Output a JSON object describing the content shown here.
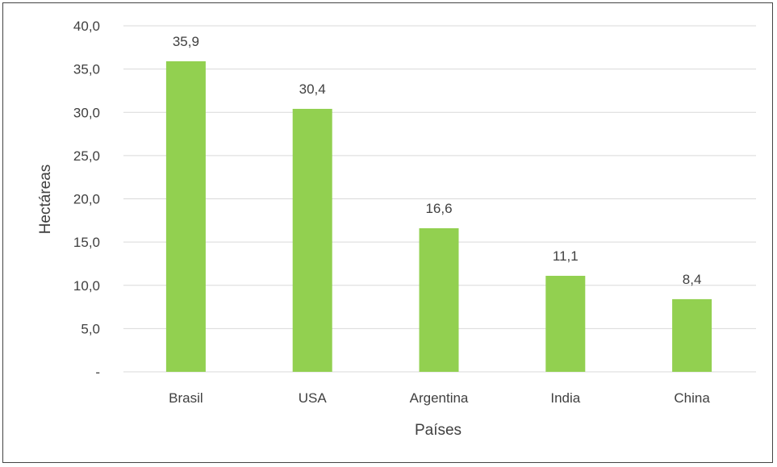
{
  "chart_data": {
    "type": "bar",
    "title": "",
    "xlabel": "Países",
    "ylabel": "Hectáreas",
    "categories": [
      "Brasil",
      "USA",
      "Argentina",
      "India",
      "China"
    ],
    "values": [
      35.9,
      30.4,
      16.6,
      11.1,
      8.4
    ],
    "data_labels": [
      "35,9",
      "30,4",
      "16,6",
      "11,1",
      "8,4"
    ],
    "ylim": [
      0,
      40
    ],
    "y_ticks": [
      0,
      5,
      10,
      15,
      20,
      25,
      30,
      35,
      40
    ],
    "y_tick_labels": [
      "-",
      "5,0",
      "10,0",
      "15,0",
      "20,0",
      "25,0",
      "30,0",
      "35,0",
      "40,0"
    ],
    "grid": true,
    "legend": "none",
    "bar_color": "#92d050",
    "grid_color": "#d9d9d9",
    "text_color": "#404040"
  }
}
